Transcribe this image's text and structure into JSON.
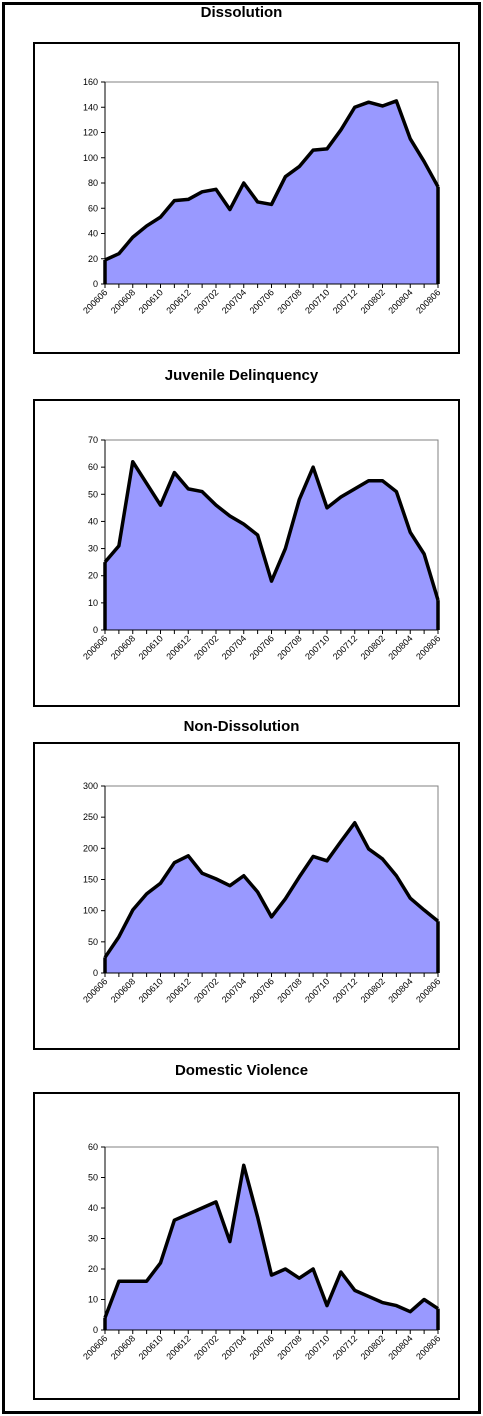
{
  "colors": {
    "fill": "#9999ff",
    "line": "#000000",
    "frame": "#000000",
    "gridline": "#808080"
  },
  "chart_data": [
    {
      "type": "area",
      "title": "Dissolution",
      "x": [
        "200606",
        "200607",
        "200608",
        "200609",
        "200610",
        "200611",
        "200612",
        "200701",
        "200702",
        "200703",
        "200704",
        "200705",
        "200706",
        "200707",
        "200708",
        "200709",
        "200710",
        "200711",
        "200712",
        "200801",
        "200802",
        "200803",
        "200804",
        "200805",
        "200806"
      ],
      "xticks": [
        "200606",
        "200608",
        "200610",
        "200612",
        "200702",
        "200704",
        "200706",
        "200708",
        "200710",
        "200712",
        "200802",
        "200804",
        "200806"
      ],
      "series": [
        {
          "values": [
            19,
            24,
            37,
            46,
            53,
            66,
            67,
            73,
            75,
            59,
            80,
            65,
            63,
            85,
            93,
            106,
            107,
            122,
            140,
            144,
            141,
            145,
            115,
            97,
            77
          ]
        }
      ],
      "ylim": [
        0,
        160
      ],
      "yticks": [
        0,
        20,
        40,
        60,
        80,
        100,
        120,
        140,
        160
      ],
      "grid": false,
      "legend": "none"
    },
    {
      "type": "area",
      "title": "Juvenile Delinquency",
      "x": [
        "200606",
        "200607",
        "200608",
        "200609",
        "200610",
        "200611",
        "200612",
        "200701",
        "200702",
        "200703",
        "200704",
        "200705",
        "200706",
        "200707",
        "200708",
        "200709",
        "200710",
        "200711",
        "200712",
        "200801",
        "200802",
        "200803",
        "200804",
        "200805",
        "200806"
      ],
      "xticks": [
        "200606",
        "200608",
        "200610",
        "200612",
        "200702",
        "200704",
        "200706",
        "200708",
        "200710",
        "200712",
        "200802",
        "200804",
        "200806"
      ],
      "series": [
        {
          "values": [
            25,
            31,
            62,
            54,
            46,
            58,
            52,
            51,
            46,
            42,
            39,
            35,
            18,
            30,
            48,
            60,
            45,
            49,
            52,
            55,
            55,
            51,
            36,
            28,
            11
          ]
        }
      ],
      "ylim": [
        0,
        70
      ],
      "yticks": [
        0,
        10,
        20,
        30,
        40,
        50,
        60,
        70
      ],
      "grid": false,
      "legend": "none"
    },
    {
      "type": "area",
      "title": "Non-Dissolution",
      "x": [
        "200606",
        "200607",
        "200608",
        "200609",
        "200610",
        "200611",
        "200612",
        "200701",
        "200702",
        "200703",
        "200704",
        "200705",
        "200706",
        "200707",
        "200708",
        "200709",
        "200710",
        "200711",
        "200712",
        "200801",
        "200802",
        "200803",
        "200804",
        "200805",
        "200806"
      ],
      "xticks": [
        "200606",
        "200608",
        "200610",
        "200612",
        "200702",
        "200704",
        "200706",
        "200708",
        "200710",
        "200712",
        "200802",
        "200804",
        "200806"
      ],
      "series": [
        {
          "values": [
            25,
            58,
            101,
            127,
            144,
            177,
            188,
            160,
            151,
            140,
            156,
            130,
            90,
            119,
            154,
            187,
            180,
            211,
            241,
            199,
            183,
            156,
            120,
            101,
            83
          ]
        }
      ],
      "ylim": [
        0,
        300
      ],
      "yticks": [
        0,
        50,
        100,
        150,
        200,
        250,
        300
      ],
      "grid": false,
      "legend": "none"
    },
    {
      "type": "area",
      "title": "Domestic Violence",
      "x": [
        "200606",
        "200607",
        "200608",
        "200609",
        "200610",
        "200611",
        "200612",
        "200701",
        "200702",
        "200703",
        "200704",
        "200705",
        "200706",
        "200707",
        "200708",
        "200709",
        "200710",
        "200711",
        "200712",
        "200801",
        "200802",
        "200803",
        "200804",
        "200805",
        "200806"
      ],
      "xticks": [
        "200606",
        "200608",
        "200610",
        "200612",
        "200702",
        "200704",
        "200706",
        "200708",
        "200710",
        "200712",
        "200802",
        "200804",
        "200806"
      ],
      "series": [
        {
          "values": [
            4,
            16,
            16,
            16,
            22,
            36,
            38,
            40,
            42,
            29,
            54,
            37,
            18,
            20,
            17,
            20,
            8,
            19,
            13,
            11,
            9,
            8,
            6,
            10,
            7
          ]
        }
      ],
      "ylim": [
        0,
        60
      ],
      "yticks": [
        0,
        10,
        20,
        30,
        40,
        50,
        60
      ],
      "grid": false,
      "legend": "none"
    }
  ]
}
